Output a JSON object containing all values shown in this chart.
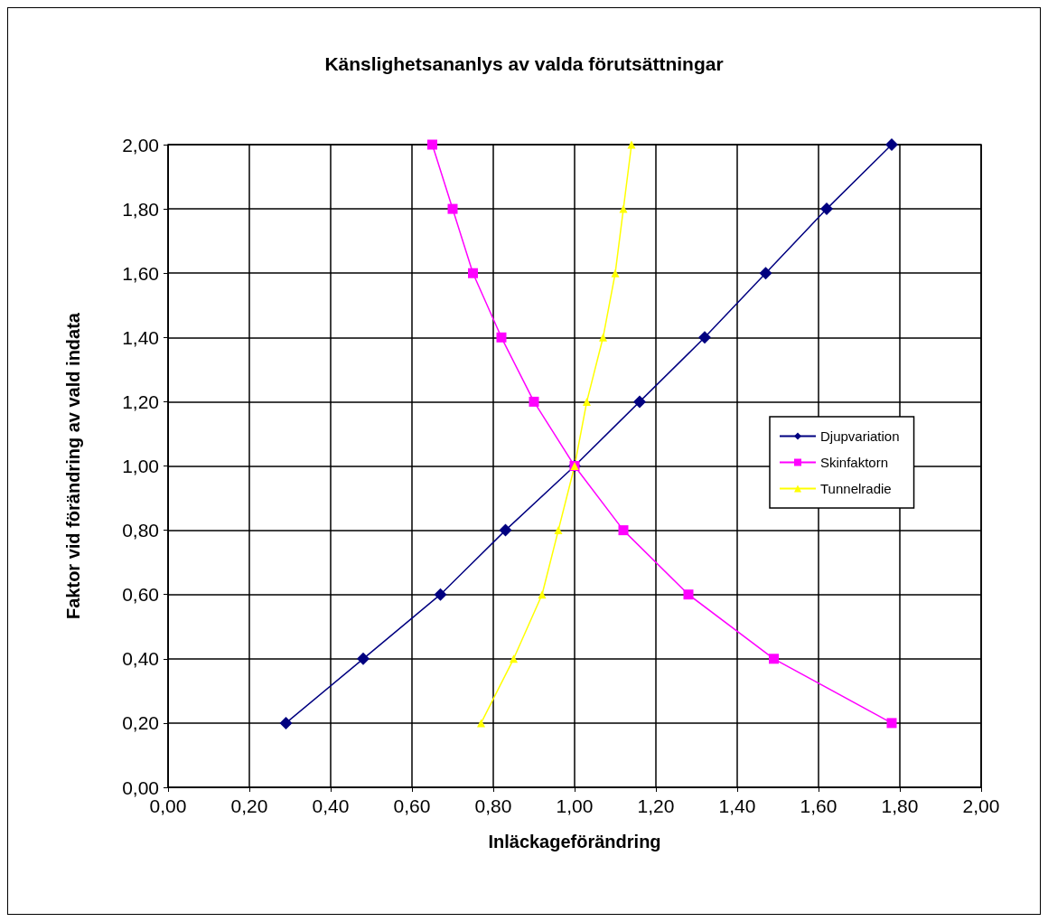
{
  "chart_data": {
    "type": "line",
    "title": "Känslighetsananlys av valda förutsättningar",
    "xlabel": "Inläckageförändring",
    "ylabel": "Faktor vid förändring av vald indata",
    "xlim": [
      0,
      2
    ],
    "ylim": [
      0,
      2
    ],
    "xticks": [
      {
        "value": 0,
        "label": "0,00"
      },
      {
        "value": 0.2,
        "label": "0,20"
      },
      {
        "value": 0.4,
        "label": "0,40"
      },
      {
        "value": 0.6,
        "label": "0,60"
      },
      {
        "value": 0.8,
        "label": "0,80"
      },
      {
        "value": 1,
        "label": "1,00"
      },
      {
        "value": 1.2,
        "label": "1,20"
      },
      {
        "value": 1.4,
        "label": "1,40"
      },
      {
        "value": 1.6,
        "label": "1,60"
      },
      {
        "value": 1.8,
        "label": "1,80"
      },
      {
        "value": 2,
        "label": "2,00"
      }
    ],
    "yticks": [
      {
        "value": 0,
        "label": "0,00"
      },
      {
        "value": 0.2,
        "label": "0,20"
      },
      {
        "value": 0.4,
        "label": "0,40"
      },
      {
        "value": 0.6,
        "label": "0,60"
      },
      {
        "value": 0.8,
        "label": "0,80"
      },
      {
        "value": 1,
        "label": "1,00"
      },
      {
        "value": 1.2,
        "label": "1,20"
      },
      {
        "value": 1.4,
        "label": "1,40"
      },
      {
        "value": 1.6,
        "label": "1,60"
      },
      {
        "value": 1.8,
        "label": "1,80"
      },
      {
        "value": 2,
        "label": "2,00"
      }
    ],
    "grid": true,
    "legend": "right",
    "series": [
      {
        "name": "Djupvariation",
        "color": "#000080",
        "marker": "diamond",
        "x": [
          0.29,
          0.48,
          0.67,
          0.83,
          1.0,
          1.16,
          1.32,
          1.47,
          1.62,
          1.78
        ],
        "values": [
          0.2,
          0.4,
          0.6,
          0.8,
          1.0,
          1.2,
          1.4,
          1.6,
          1.8,
          2.0
        ]
      },
      {
        "name": "Skinfaktorn",
        "color": "#ff00ff",
        "marker": "square",
        "x": [
          1.78,
          1.49,
          1.28,
          1.12,
          1.0,
          0.9,
          0.82,
          0.75,
          0.7,
          0.65
        ],
        "values": [
          0.2,
          0.4,
          0.6,
          0.8,
          1.0,
          1.2,
          1.4,
          1.6,
          1.8,
          2.0
        ]
      },
      {
        "name": "Tunnelradie",
        "color": "#ffff00",
        "marker": "triangle",
        "x": [
          0.77,
          0.85,
          0.92,
          0.96,
          1.0,
          1.03,
          1.07,
          1.1,
          1.12,
          1.14
        ],
        "values": [
          0.2,
          0.4,
          0.6,
          0.8,
          1.0,
          1.2,
          1.4,
          1.6,
          1.8,
          2.0
        ]
      }
    ]
  }
}
